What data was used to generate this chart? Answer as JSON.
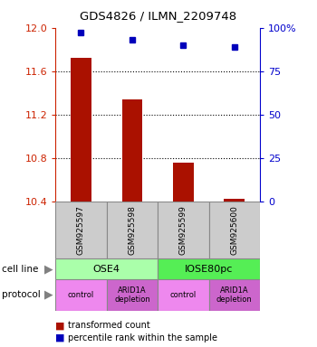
{
  "title": "GDS4826 / ILMN_2209748",
  "samples": [
    "GSM925597",
    "GSM925598",
    "GSM925599",
    "GSM925600"
  ],
  "transformed_counts": [
    11.72,
    11.34,
    10.76,
    10.42
  ],
  "percentile_ranks": [
    97,
    93,
    90,
    89
  ],
  "ylim_left": [
    10.4,
    12.0
  ],
  "ylim_right": [
    0,
    100
  ],
  "yticks_left": [
    10.4,
    10.8,
    11.2,
    11.6,
    12.0
  ],
  "yticks_right": [
    0,
    25,
    50,
    75,
    100
  ],
  "bar_color": "#aa1100",
  "dot_color": "#0000bb",
  "cell_line_labels": [
    "OSE4",
    "IOSE80pc"
  ],
  "cell_line_spans": [
    [
      0,
      2
    ],
    [
      2,
      4
    ]
  ],
  "cell_line_color_ose4": "#aaffaa",
  "cell_line_color_iose": "#55ee55",
  "protocol_labels": [
    "control",
    "ARID1A\ndepletion",
    "control",
    "ARID1A\ndepletion"
  ],
  "protocol_color_control": "#ee88ee",
  "protocol_color_depletion": "#cc66cc",
  "legend_bar_label": "transformed count",
  "legend_dot_label": "percentile rank within the sample",
  "left_axis_color": "#cc2200",
  "right_axis_color": "#0000cc",
  "sample_box_color": "#cccccc"
}
